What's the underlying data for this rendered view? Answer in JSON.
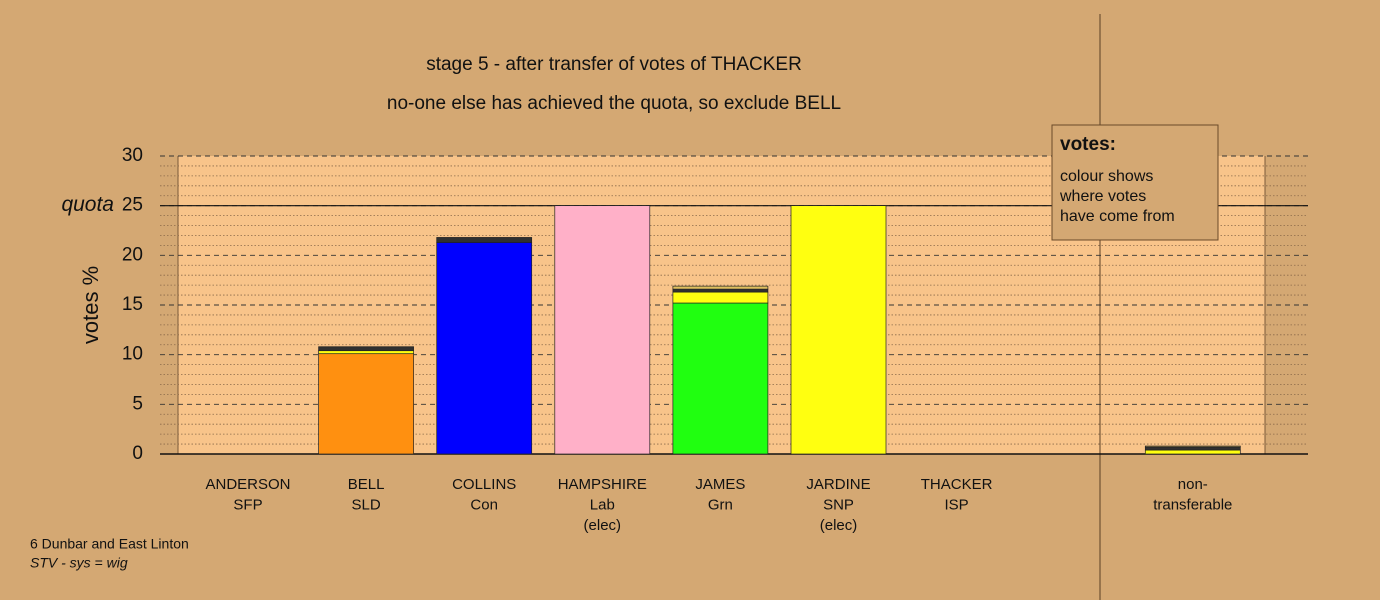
{
  "chart_data": {
    "type": "stacked_bar",
    "title": "stage 5 - after transfer of votes of THACKER",
    "subtitle": "no-one else has achieved the quota, so exclude BELL",
    "ylabel": "votes %",
    "quota": 25,
    "quota_label": "quota",
    "categories": [
      [
        "ANDERSON",
        "SFP"
      ],
      [
        "BELL",
        "SLD"
      ],
      [
        "COLLINS",
        "Con"
      ],
      [
        "HAMPSHIRE",
        "Lab",
        "(elec)"
      ],
      [
        "JAMES",
        "Grn"
      ],
      [
        "JARDINE",
        "SNP",
        "(elec)"
      ],
      [
        "THACKER",
        "ISP"
      ],
      null,
      [
        "non-",
        "transferable"
      ]
    ],
    "series": [
      {
        "color": "#ff9010",
        "values": [
          0,
          10.1,
          0,
          0,
          0,
          0,
          0,
          null,
          0
        ]
      },
      {
        "color": "#0000ff",
        "values": [
          0,
          0,
          21.3,
          0,
          0,
          0,
          0,
          null,
          0
        ]
      },
      {
        "color": "#ffb0c8",
        "values": [
          0,
          0,
          0,
          25,
          0,
          0,
          0,
          null,
          0
        ]
      },
      {
        "color": "#20ff10",
        "values": [
          0,
          0,
          0,
          0,
          15.2,
          0,
          0,
          null,
          0
        ]
      },
      {
        "color": "#ffff10",
        "values": [
          0,
          0.3,
          0,
          0,
          1.1,
          25,
          0,
          null,
          0.4
        ]
      },
      {
        "color": "#303030",
        "values": [
          0,
          0.4,
          0.5,
          0,
          0.3,
          0,
          0,
          null,
          0.3
        ]
      },
      {
        "color": "#e0c060",
        "values": [
          0,
          0,
          0,
          0,
          0.3,
          0,
          0,
          null,
          0.1
        ]
      }
    ],
    "ylim": [
      0,
      30
    ],
    "yticks": [
      0,
      5,
      10,
      15,
      20,
      25,
      30
    ],
    "minor_yticks": [
      1,
      2,
      3,
      4,
      6,
      7,
      8,
      9,
      11,
      12,
      13,
      14,
      16,
      17,
      18,
      19,
      21,
      22,
      23,
      24,
      26,
      27,
      28,
      29
    ],
    "grid": true,
    "legend_box": {
      "title": "votes:",
      "lines": [
        "colour shows",
        "where votes",
        "have come from"
      ]
    },
    "footer": [
      "6 Dunbar and East Linton",
      "STV - sys = wig"
    ]
  }
}
